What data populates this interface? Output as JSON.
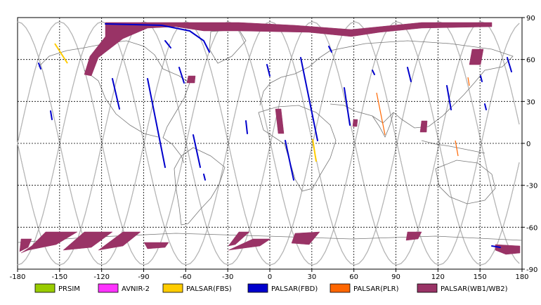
{
  "map": {
    "lon_range": [
      -180,
      180
    ],
    "lat_range": [
      -90,
      90
    ],
    "grid_step": 30,
    "x_ticks": [
      "-180",
      "-150",
      "-120",
      "-90",
      "-60",
      "-30",
      "0",
      "30",
      "60",
      "90",
      "120",
      "150",
      "180"
    ],
    "y_ticks": [
      "90",
      "60",
      "30",
      "0",
      "-30",
      "-60",
      "-90"
    ]
  },
  "legend": [
    {
      "label": "PRSIM",
      "color": "#99cc00"
    },
    {
      "label": "AVNIR-2",
      "color": "#ff33ff"
    },
    {
      "label": "PALSAR(FBS)",
      "color": "#ffcc00"
    },
    {
      "label": "PALSAR(FBD)",
      "color": "#0000cc"
    },
    {
      "label": "PALSAR(PLR)",
      "color": "#ff6600"
    },
    {
      "label": "PALSAR(WB1/WB2)",
      "color": "#993366"
    }
  ]
}
